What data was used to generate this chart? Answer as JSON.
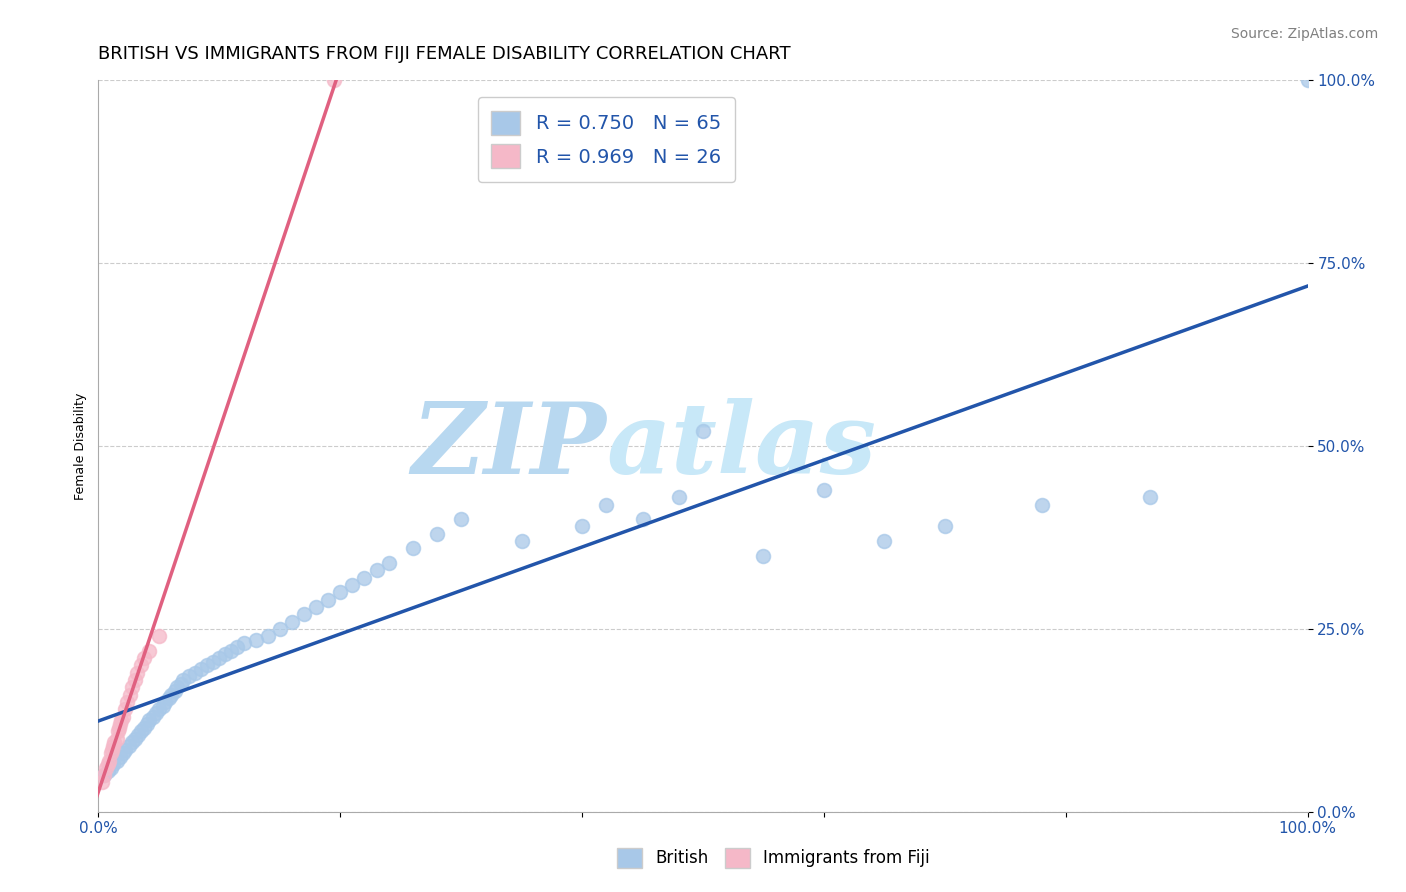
{
  "title": "BRITISH VS IMMIGRANTS FROM FIJI FEMALE DISABILITY CORRELATION CHART",
  "source": "Source: ZipAtlas.com",
  "ylabel": "Female Disability",
  "watermark": "ZIPatlas",
  "xmin": 0.0,
  "xmax": 1.0,
  "ymin": 0.0,
  "ymax": 1.0,
  "ytick_labels": [
    "100.0%",
    "75.0%",
    "50.0%",
    "25.0%",
    "0.0%"
  ],
  "ytick_values": [
    1.0,
    0.75,
    0.5,
    0.25,
    0.0
  ],
  "british_R": 0.75,
  "british_N": 65,
  "fiji_R": 0.969,
  "fiji_N": 26,
  "british_color": "#a8c8e8",
  "fiji_color": "#f5b8c8",
  "british_line_color": "#2255aa",
  "fiji_line_color": "#e06080",
  "legend_text_color": "#2255aa",
  "grid_color": "#cccccc",
  "background_color": "#ffffff",
  "title_fontsize": 13,
  "axis_label_fontsize": 9,
  "tick_fontsize": 11,
  "legend_fontsize": 14,
  "watermark_fontsize": 72,
  "watermark_color": "#cce4f4",
  "source_fontsize": 10,
  "british_x": [
    0.005,
    0.008,
    0.01,
    0.012,
    0.015,
    0.018,
    0.02,
    0.022,
    0.025,
    0.028,
    0.03,
    0.033,
    0.035,
    0.038,
    0.04,
    0.042,
    0.045,
    0.048,
    0.05,
    0.053,
    0.055,
    0.058,
    0.06,
    0.063,
    0.065,
    0.068,
    0.07,
    0.075,
    0.08,
    0.085,
    0.09,
    0.095,
    0.1,
    0.105,
    0.11,
    0.115,
    0.12,
    0.13,
    0.14,
    0.15,
    0.16,
    0.17,
    0.18,
    0.19,
    0.2,
    0.21,
    0.22,
    0.23,
    0.24,
    0.26,
    0.28,
    0.3,
    0.35,
    0.4,
    0.42,
    0.45,
    0.48,
    0.5,
    0.55,
    0.6,
    0.65,
    0.7,
    0.78,
    0.87,
    1.0
  ],
  "british_y": [
    0.05,
    0.055,
    0.06,
    0.065,
    0.07,
    0.075,
    0.08,
    0.085,
    0.09,
    0.095,
    0.1,
    0.105,
    0.11,
    0.115,
    0.12,
    0.125,
    0.13,
    0.135,
    0.14,
    0.145,
    0.15,
    0.155,
    0.16,
    0.165,
    0.17,
    0.175,
    0.18,
    0.185,
    0.19,
    0.195,
    0.2,
    0.205,
    0.21,
    0.215,
    0.22,
    0.225,
    0.23,
    0.235,
    0.24,
    0.25,
    0.26,
    0.27,
    0.28,
    0.29,
    0.3,
    0.31,
    0.32,
    0.33,
    0.34,
    0.36,
    0.38,
    0.4,
    0.37,
    0.39,
    0.42,
    0.4,
    0.43,
    0.52,
    0.35,
    0.44,
    0.37,
    0.39,
    0.42,
    0.43,
    1.0
  ],
  "fiji_x": [
    0.003,
    0.005,
    0.006,
    0.008,
    0.009,
    0.01,
    0.011,
    0.012,
    0.013,
    0.015,
    0.016,
    0.017,
    0.018,
    0.019,
    0.02,
    0.022,
    0.024,
    0.026,
    0.028,
    0.03,
    0.032,
    0.035,
    0.038,
    0.042,
    0.05,
    0.195
  ],
  "fiji_y": [
    0.04,
    0.05,
    0.06,
    0.065,
    0.07,
    0.08,
    0.085,
    0.09,
    0.095,
    0.1,
    0.11,
    0.115,
    0.12,
    0.125,
    0.13,
    0.14,
    0.15,
    0.16,
    0.17,
    0.18,
    0.19,
    0.2,
    0.21,
    0.22,
    0.24,
    1.0
  ]
}
